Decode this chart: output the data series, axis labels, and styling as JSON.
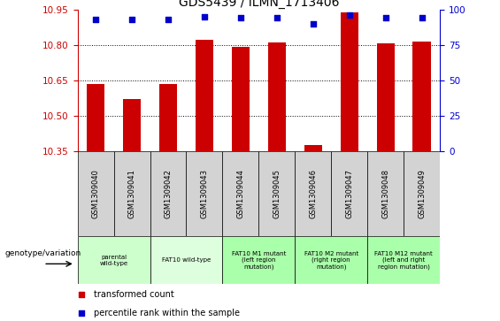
{
  "title": "GDS5439 / ILMN_1713406",
  "categories": [
    "GSM1309040",
    "GSM1309041",
    "GSM1309042",
    "GSM1309043",
    "GSM1309044",
    "GSM1309045",
    "GSM1309046",
    "GSM1309047",
    "GSM1309048",
    "GSM1309049"
  ],
  "bar_values": [
    10.635,
    10.57,
    10.635,
    10.82,
    10.79,
    10.81,
    10.375,
    10.94,
    10.805,
    10.815
  ],
  "percentile_values": [
    93,
    93,
    93,
    95,
    94,
    94,
    90,
    96,
    94,
    94
  ],
  "ylim": [
    10.35,
    10.95
  ],
  "yticks": [
    10.35,
    10.5,
    10.65,
    10.8,
    10.95
  ],
  "right_yticks": [
    0,
    25,
    50,
    75,
    100
  ],
  "right_ylim": [
    0,
    100
  ],
  "bar_color": "#CC0000",
  "dot_color": "#0000CC",
  "grid_color": "#000000",
  "axis_color_left": "#CC0000",
  "axis_color_right": "#0000CC",
  "group_boundaries": [
    {
      "start": 0,
      "end": 2,
      "label": "parental\nwild-type",
      "color": "#CCFFCC"
    },
    {
      "start": 2,
      "end": 4,
      "label": "FAT10 wild-type",
      "color": "#DDFFDD"
    },
    {
      "start": 4,
      "end": 6,
      "label": "FAT10 M1 mutant\n(left region\nmutation)",
      "color": "#AAFFAA"
    },
    {
      "start": 6,
      "end": 8,
      "label": "FAT10 M2 mutant\n(right region\nmutation)",
      "color": "#AAFFAA"
    },
    {
      "start": 8,
      "end": 10,
      "label": "FAT10 M12 mutant\n(left and right\nregion mutation)",
      "color": "#AAFFAA"
    }
  ],
  "sample_cell_color": "#D3D3D3",
  "bar_width": 0.5
}
